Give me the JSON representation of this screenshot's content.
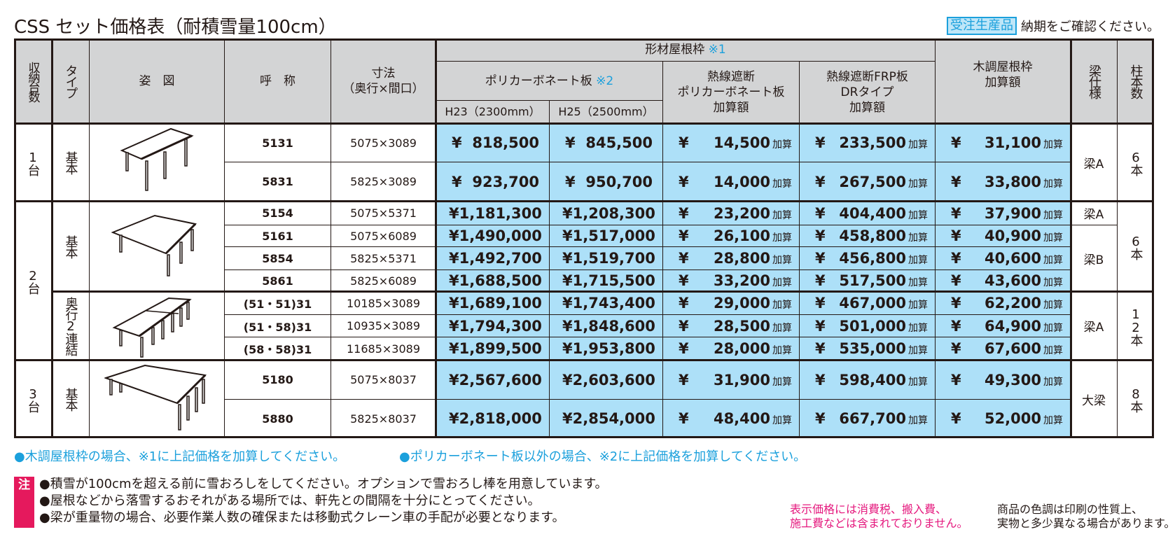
{
  "title": "CSS セット価格表（耐積雪量100cm）",
  "badge": {
    "label": "受注生産品",
    "notice": "納期をご確認ください。"
  },
  "header": {
    "units": "収納台数",
    "type": "タイプ",
    "figure": "姿　図",
    "name": "呼　称",
    "dims_line1": "寸法",
    "dims_line2": "（奥行×間口）",
    "frame_group": "形材屋根枠",
    "frame_group_mark": "※1",
    "polycarb": "ポリカーボネート板",
    "polycarb_mark": "※2",
    "h23": "H23（2300mm）",
    "h25": "H25（2500mm）",
    "heat_poly_line1": "熱線遮断",
    "heat_poly_line2": "ポリカーボネート板",
    "heat_poly_line3": "加算額",
    "frp_line1": "熱線遮断FRP板",
    "frp_line2": "DRタイプ",
    "frp_line3": "加算額",
    "wood_line1": "木調屋根枠",
    "wood_line2": "加算額",
    "beam": "梁仕様",
    "posts": "柱本数"
  },
  "currency": "¥",
  "add_suffix": "加算",
  "groups": [
    {
      "units": "1台",
      "subgroups": [
        {
          "type": "基本",
          "figure": "table-1",
          "beam_cells": [
            {
              "label": "梁A",
              "rows": 2
            }
          ],
          "posts": "6本",
          "rows": [
            {
              "name": "5131",
              "dims": "5075×3089",
              "h23": "818,500",
              "h25": "845,500",
              "heat_poly": "14,500",
              "frp": "233,500",
              "wood": "31,100"
            },
            {
              "name": "5831",
              "dims": "5825×3089",
              "h23": "923,700",
              "h25": "950,700",
              "heat_poly": "14,000",
              "frp": "267,500",
              "wood": "33,800"
            }
          ]
        }
      ]
    },
    {
      "units": "2台",
      "subgroups": [
        {
          "type": "基本",
          "figure": "table-2",
          "beam_cells": [
            {
              "label": "梁A",
              "rows": 1
            },
            {
              "label": "梁B",
              "rows": 3
            }
          ],
          "posts": "6本",
          "rows": [
            {
              "name": "5154",
              "dims": "5075×5371",
              "h23": "1,181,300",
              "h25": "1,208,300",
              "heat_poly": "23,200",
              "frp": "404,400",
              "wood": "37,900"
            },
            {
              "name": "5161",
              "dims": "5075×6089",
              "h23": "1,490,000",
              "h25": "1,517,000",
              "heat_poly": "26,100",
              "frp": "458,800",
              "wood": "40,900"
            },
            {
              "name": "5854",
              "dims": "5825×5371",
              "h23": "1,492,700",
              "h25": "1,519,700",
              "heat_poly": "28,800",
              "frp": "456,800",
              "wood": "40,600"
            },
            {
              "name": "5861",
              "dims": "5825×6089",
              "h23": "1,688,500",
              "h25": "1,715,500",
              "heat_poly": "33,200",
              "frp": "517,500",
              "wood": "43,600"
            }
          ]
        },
        {
          "type": "奥行2連結",
          "figure": "table-2-tandem",
          "beam_cells": [
            {
              "label": "梁A",
              "rows": 3
            }
          ],
          "posts": "12本",
          "rows": [
            {
              "name": "(51・51)31",
              "dims": "10185×3089",
              "h23": "1,689,100",
              "h25": "1,743,400",
              "heat_poly": "29,000",
              "frp": "467,000",
              "wood": "62,200"
            },
            {
              "name": "(51・58)31",
              "dims": "10935×3089",
              "h23": "1,794,300",
              "h25": "1,848,600",
              "heat_poly": "28,500",
              "frp": "501,000",
              "wood": "64,900"
            },
            {
              "name": "(58・58)31",
              "dims": "11685×3089",
              "h23": "1,899,500",
              "h25": "1,953,800",
              "heat_poly": "28,000",
              "frp": "535,000",
              "wood": "67,600"
            }
          ]
        }
      ]
    },
    {
      "units": "3台",
      "subgroups": [
        {
          "type": "基本",
          "figure": "table-3",
          "beam_cells": [
            {
              "label": "大梁",
              "rows": 2
            }
          ],
          "posts": "8本",
          "rows": [
            {
              "name": "5180",
              "dims": "5075×8037",
              "h23": "2,567,600",
              "h25": "2,603,600",
              "heat_poly": "31,900",
              "frp": "598,400",
              "wood": "49,300"
            },
            {
              "name": "5880",
              "dims": "5825×8037",
              "h23": "2,818,000",
              "h25": "2,854,000",
              "heat_poly": "48,400",
              "frp": "667,700",
              "wood": "52,000"
            }
          ]
        }
      ]
    }
  ],
  "footnotes": [
    "●木調屋根枠の場合、※1に上記価格を加算してください。",
    "●ポリカーボネート板以外の場合、※2に上記価格を加算してください。"
  ],
  "notes": {
    "tag": "注",
    "items": [
      "●積雪が100cmを超える前に雪おろしをしてください。オプションで雪おろし棒を用意しています。",
      "●屋根などから落雪するおそれがある場所では、軒先との間隔を十分にとってください。",
      "●梁が重量物の場合、必要作業人数の確保または移動式クレーン車の手配が必要となります。"
    ]
  },
  "disclaimer_pink": [
    "表示価格には消費税、搬入費、",
    "施工費などは含まれておりません。"
  ],
  "disclaimer_gray": [
    "商品の色調は印刷の性質上、",
    "実物と多少異なる場合があります。"
  ],
  "colors": {
    "price_fill": "#ade0f8",
    "header_fill": "#d3d4d5",
    "accent_blue": "#1ba0dc",
    "note_pink": "#e5195d",
    "disclaimer_pink": "#e5197e"
  }
}
